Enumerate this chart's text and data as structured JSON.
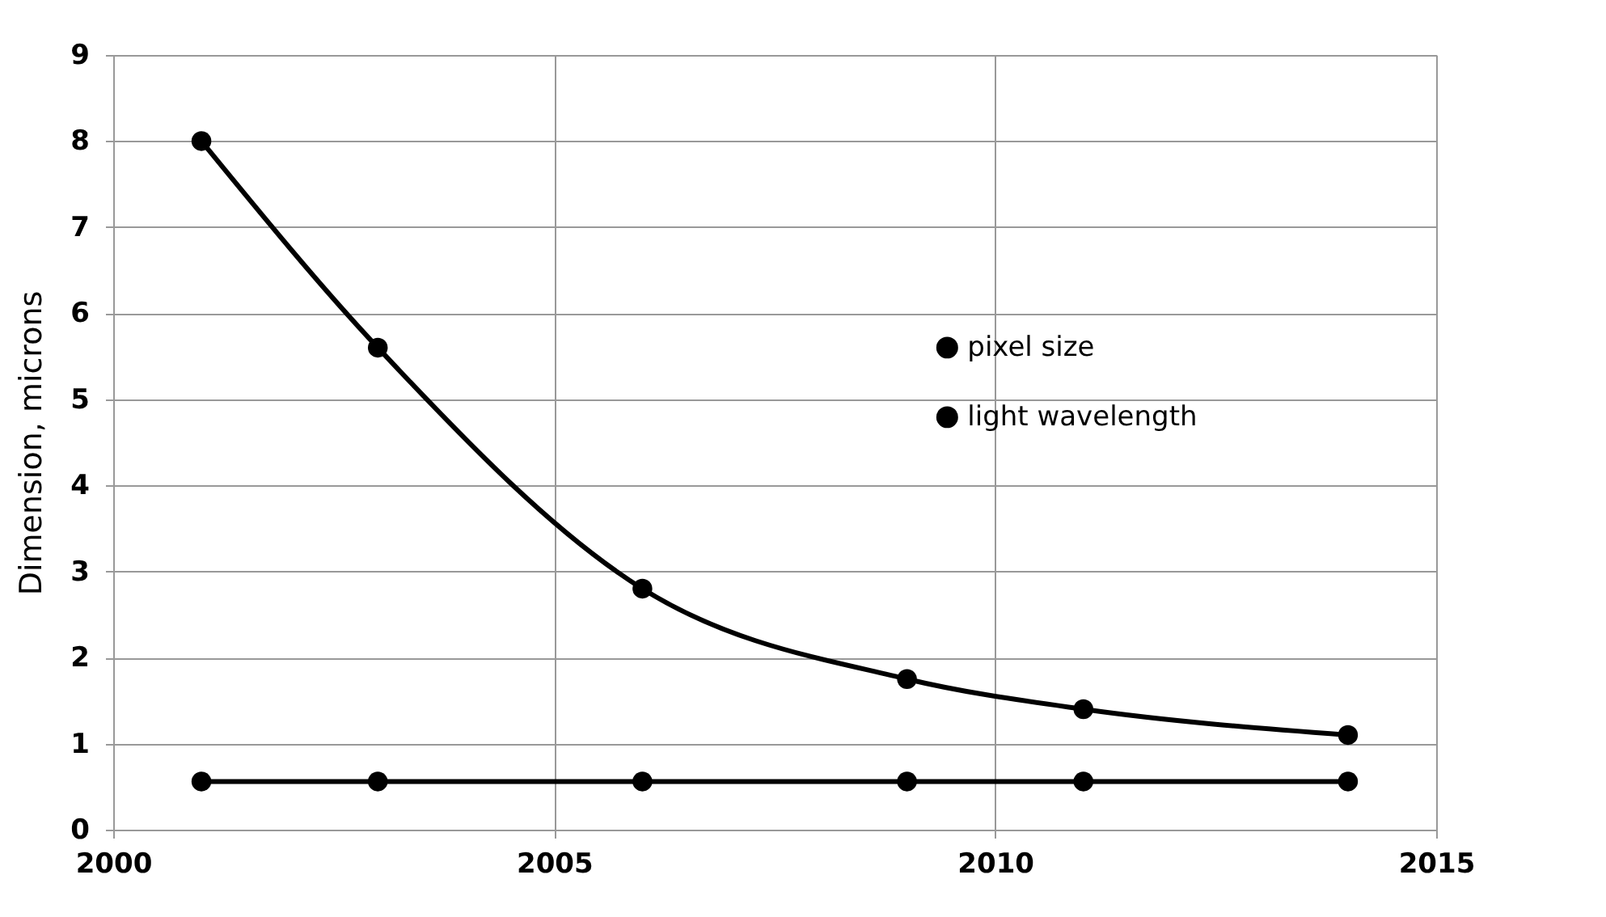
{
  "chart_data": {
    "type": "line",
    "ylabel": "Dimension, microns",
    "x": [
      2001,
      2003,
      2006,
      2009,
      2011,
      2014
    ],
    "series": [
      {
        "name": "pixel size",
        "color": "#000000",
        "values": [
          8.0,
          5.6,
          2.8,
          1.75,
          1.4,
          1.1
        ]
      },
      {
        "name": "light wavelength",
        "color": "#000000",
        "values": [
          0.56,
          0.56,
          0.56,
          0.56,
          0.56,
          0.56
        ]
      }
    ],
    "xlim": [
      2000,
      2015
    ],
    "xticks": [
      2000,
      2005,
      2010,
      2015
    ],
    "ylim": [
      0,
      9
    ],
    "yticks": [
      0,
      1,
      2,
      3,
      4,
      5,
      6,
      7,
      8,
      9
    ],
    "grid": true,
    "legend": "right",
    "marker": "circle",
    "line_style": "solid"
  }
}
